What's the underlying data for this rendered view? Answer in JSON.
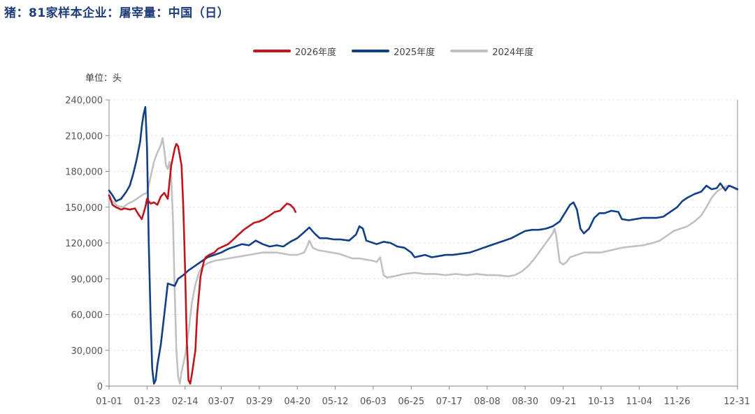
{
  "title": "猪：81家样本企业：屠宰量：中国（日）",
  "unit_label": "单位：头",
  "chart_data": {
    "type": "line",
    "title": "猪：81家样本企业：屠宰量：中国（日）",
    "ylabel": "单位：头",
    "ylim": [
      0,
      240000
    ],
    "y_ticks": [
      "0",
      "30,000",
      "60,000",
      "90,000",
      "120,000",
      "150,000",
      "180,000",
      "210,000",
      "240,000"
    ],
    "y_tick_values": [
      0,
      30000,
      60000,
      90000,
      120000,
      150000,
      180000,
      210000,
      240000
    ],
    "x_ticks": [
      "01-01",
      "01-23",
      "02-14",
      "03-07",
      "03-29",
      "04-20",
      "05-12",
      "06-03",
      "06-25",
      "07-17",
      "08-08",
      "08-30",
      "09-21",
      "10-13",
      "11-04",
      "11-26",
      "12-31"
    ],
    "x_tick_days": [
      1,
      23,
      45,
      66,
      88,
      110,
      132,
      154,
      176,
      198,
      220,
      242,
      264,
      286,
      308,
      330,
      365
    ],
    "grid": "horizontal",
    "legend_position": "top-center",
    "series": [
      {
        "name": "2026年度",
        "color": "#c0141e",
        "points": [
          [
            1,
            160000
          ],
          [
            3,
            152000
          ],
          [
            5,
            150000
          ],
          [
            8,
            148000
          ],
          [
            10,
            149000
          ],
          [
            13,
            148000
          ],
          [
            16,
            149000
          ],
          [
            18,
            144000
          ],
          [
            20,
            140000
          ],
          [
            22,
            150000
          ],
          [
            23,
            157000
          ],
          [
            25,
            153000
          ],
          [
            27,
            154000
          ],
          [
            29,
            152000
          ],
          [
            31,
            159000
          ],
          [
            33,
            162000
          ],
          [
            35,
            157000
          ],
          [
            37,
            185000
          ],
          [
            39,
            199000
          ],
          [
            40,
            203000
          ],
          [
            41,
            201000
          ],
          [
            43,
            185000
          ],
          [
            44,
            150000
          ],
          [
            45,
            100000
          ],
          [
            46,
            40000
          ],
          [
            47,
            5000
          ],
          [
            48,
            2000
          ],
          [
            49,
            10000
          ],
          [
            51,
            30000
          ],
          [
            52,
            60000
          ],
          [
            54,
            92000
          ],
          [
            56,
            105000
          ],
          [
            57,
            108000
          ],
          [
            59,
            110000
          ],
          [
            62,
            112000
          ],
          [
            64,
            115000
          ],
          [
            67,
            117000
          ],
          [
            70,
            119000
          ],
          [
            73,
            123000
          ],
          [
            76,
            127000
          ],
          [
            79,
            131000
          ],
          [
            82,
            134000
          ],
          [
            85,
            137000
          ],
          [
            88,
            138000
          ],
          [
            91,
            140000
          ],
          [
            94,
            143000
          ],
          [
            97,
            146000
          ],
          [
            100,
            147000
          ],
          [
            102,
            150000
          ],
          [
            104,
            153000
          ],
          [
            106,
            152000
          ],
          [
            108,
            149000
          ],
          [
            109,
            146000
          ]
        ]
      },
      {
        "name": "2025年度",
        "color": "#0f3f86",
        "points": [
          [
            1,
            164000
          ],
          [
            3,
            160000
          ],
          [
            5,
            155000
          ],
          [
            8,
            157000
          ],
          [
            11,
            163000
          ],
          [
            13,
            168000
          ],
          [
            15,
            178000
          ],
          [
            17,
            190000
          ],
          [
            19,
            205000
          ],
          [
            20,
            218000
          ],
          [
            21,
            228000
          ],
          [
            22,
            234000
          ],
          [
            23,
            200000
          ],
          [
            24,
            120000
          ],
          [
            25,
            60000
          ],
          [
            26,
            15000
          ],
          [
            27,
            2000
          ],
          [
            28,
            5000
          ],
          [
            29,
            18000
          ],
          [
            31,
            35000
          ],
          [
            33,
            60000
          ],
          [
            35,
            86000
          ],
          [
            37,
            85000
          ],
          [
            39,
            84000
          ],
          [
            41,
            90000
          ],
          [
            44,
            93000
          ],
          [
            47,
            97000
          ],
          [
            50,
            100000
          ],
          [
            54,
            104000
          ],
          [
            58,
            108000
          ],
          [
            62,
            110000
          ],
          [
            66,
            112000
          ],
          [
            70,
            115000
          ],
          [
            74,
            117000
          ],
          [
            78,
            119000
          ],
          [
            82,
            118000
          ],
          [
            86,
            122000
          ],
          [
            90,
            119000
          ],
          [
            94,
            117000
          ],
          [
            98,
            118000
          ],
          [
            102,
            117000
          ],
          [
            106,
            121000
          ],
          [
            110,
            124000
          ],
          [
            114,
            129000
          ],
          [
            117,
            133000
          ],
          [
            120,
            128000
          ],
          [
            123,
            124000
          ],
          [
            127,
            124000
          ],
          [
            131,
            123000
          ],
          [
            135,
            123000
          ],
          [
            140,
            122000
          ],
          [
            144,
            127000
          ],
          [
            146,
            134000
          ],
          [
            148,
            132000
          ],
          [
            150,
            122000
          ],
          [
            152,
            121000
          ],
          [
            156,
            119000
          ],
          [
            160,
            121000
          ],
          [
            164,
            120000
          ],
          [
            168,
            117000
          ],
          [
            172,
            116000
          ],
          [
            176,
            112000
          ],
          [
            178,
            108000
          ],
          [
            181,
            109000
          ],
          [
            184,
            110000
          ],
          [
            188,
            108000
          ],
          [
            192,
            109000
          ],
          [
            196,
            110000
          ],
          [
            200,
            110000
          ],
          [
            205,
            111000
          ],
          [
            210,
            112000
          ],
          [
            214,
            114000
          ],
          [
            218,
            116000
          ],
          [
            222,
            118000
          ],
          [
            226,
            120000
          ],
          [
            230,
            122000
          ],
          [
            234,
            124000
          ],
          [
            238,
            127000
          ],
          [
            242,
            130000
          ],
          [
            246,
            131000
          ],
          [
            250,
            131000
          ],
          [
            254,
            132000
          ],
          [
            258,
            134000
          ],
          [
            262,
            138000
          ],
          [
            265,
            145000
          ],
          [
            268,
            152000
          ],
          [
            270,
            154000
          ],
          [
            272,
            148000
          ],
          [
            274,
            132000
          ],
          [
            276,
            128000
          ],
          [
            279,
            132000
          ],
          [
            282,
            141000
          ],
          [
            285,
            145000
          ],
          [
            288,
            145000
          ],
          [
            292,
            147000
          ],
          [
            296,
            146000
          ],
          [
            298,
            140000
          ],
          [
            302,
            139000
          ],
          [
            306,
            140000
          ],
          [
            310,
            141000
          ],
          [
            314,
            141000
          ],
          [
            318,
            141000
          ],
          [
            322,
            142000
          ],
          [
            326,
            146000
          ],
          [
            330,
            150000
          ],
          [
            333,
            155000
          ],
          [
            336,
            158000
          ],
          [
            340,
            161000
          ],
          [
            344,
            163000
          ],
          [
            347,
            168000
          ],
          [
            350,
            165000
          ],
          [
            353,
            166000
          ],
          [
            355,
            170000
          ],
          [
            358,
            164000
          ],
          [
            360,
            168000
          ],
          [
            362,
            167000
          ],
          [
            365,
            165000
          ]
        ]
      },
      {
        "name": "2024年度",
        "color": "#c1c1c1",
        "points": [
          [
            1,
            160000
          ],
          [
            3,
            155000
          ],
          [
            6,
            151000
          ],
          [
            9,
            150000
          ],
          [
            12,
            153000
          ],
          [
            15,
            155000
          ],
          [
            18,
            158000
          ],
          [
            21,
            161000
          ],
          [
            23,
            162000
          ],
          [
            25,
            175000
          ],
          [
            27,
            188000
          ],
          [
            29,
            196000
          ],
          [
            31,
            202000
          ],
          [
            32,
            208000
          ],
          [
            33,
            198000
          ],
          [
            34,
            185000
          ],
          [
            35,
            182000
          ],
          [
            36,
            188000
          ],
          [
            37,
            175000
          ],
          [
            38,
            140000
          ],
          [
            39,
            80000
          ],
          [
            40,
            30000
          ],
          [
            41,
            8000
          ],
          [
            42,
            2000
          ],
          [
            43,
            12000
          ],
          [
            45,
            25000
          ],
          [
            47,
            45000
          ],
          [
            49,
            70000
          ],
          [
            51,
            85000
          ],
          [
            53,
            95000
          ],
          [
            55,
            100000
          ],
          [
            58,
            103000
          ],
          [
            62,
            105000
          ],
          [
            66,
            106000
          ],
          [
            70,
            107000
          ],
          [
            74,
            108000
          ],
          [
            78,
            109000
          ],
          [
            82,
            110000
          ],
          [
            86,
            111000
          ],
          [
            90,
            112000
          ],
          [
            94,
            112000
          ],
          [
            98,
            112000
          ],
          [
            102,
            111000
          ],
          [
            106,
            110000
          ],
          [
            110,
            110000
          ],
          [
            114,
            112000
          ],
          [
            116,
            118000
          ],
          [
            117,
            122000
          ],
          [
            119,
            116000
          ],
          [
            122,
            114000
          ],
          [
            126,
            113000
          ],
          [
            130,
            112000
          ],
          [
            134,
            111000
          ],
          [
            138,
            109000
          ],
          [
            142,
            107000
          ],
          [
            146,
            107000
          ],
          [
            150,
            106000
          ],
          [
            154,
            105000
          ],
          [
            156,
            104000
          ],
          [
            158,
            108000
          ],
          [
            160,
            93000
          ],
          [
            162,
            91000
          ],
          [
            166,
            92000
          ],
          [
            172,
            94000
          ],
          [
            178,
            95000
          ],
          [
            184,
            94000
          ],
          [
            190,
            94000
          ],
          [
            196,
            93000
          ],
          [
            202,
            94000
          ],
          [
            208,
            93000
          ],
          [
            214,
            94000
          ],
          [
            220,
            93000
          ],
          [
            226,
            93000
          ],
          [
            232,
            92000
          ],
          [
            236,
            93000
          ],
          [
            240,
            96000
          ],
          [
            244,
            101000
          ],
          [
            248,
            108000
          ],
          [
            252,
            116000
          ],
          [
            256,
            124000
          ],
          [
            258,
            128000
          ],
          [
            259,
            132000
          ],
          [
            260,
            126000
          ],
          [
            262,
            104000
          ],
          [
            264,
            102000
          ],
          [
            266,
            104000
          ],
          [
            268,
            108000
          ],
          [
            272,
            110000
          ],
          [
            276,
            112000
          ],
          [
            280,
            112000
          ],
          [
            286,
            112000
          ],
          [
            292,
            114000
          ],
          [
            298,
            116000
          ],
          [
            304,
            117000
          ],
          [
            310,
            118000
          ],
          [
            316,
            120000
          ],
          [
            320,
            122000
          ],
          [
            324,
            126000
          ],
          [
            328,
            130000
          ],
          [
            332,
            132000
          ],
          [
            336,
            134000
          ],
          [
            340,
            138000
          ],
          [
            344,
            143000
          ],
          [
            347,
            150000
          ],
          [
            350,
            158000
          ],
          [
            353,
            163000
          ],
          [
            356,
            166000
          ],
          [
            360,
            168000
          ],
          [
            363,
            166000
          ],
          [
            365,
            164000
          ]
        ]
      }
    ]
  }
}
